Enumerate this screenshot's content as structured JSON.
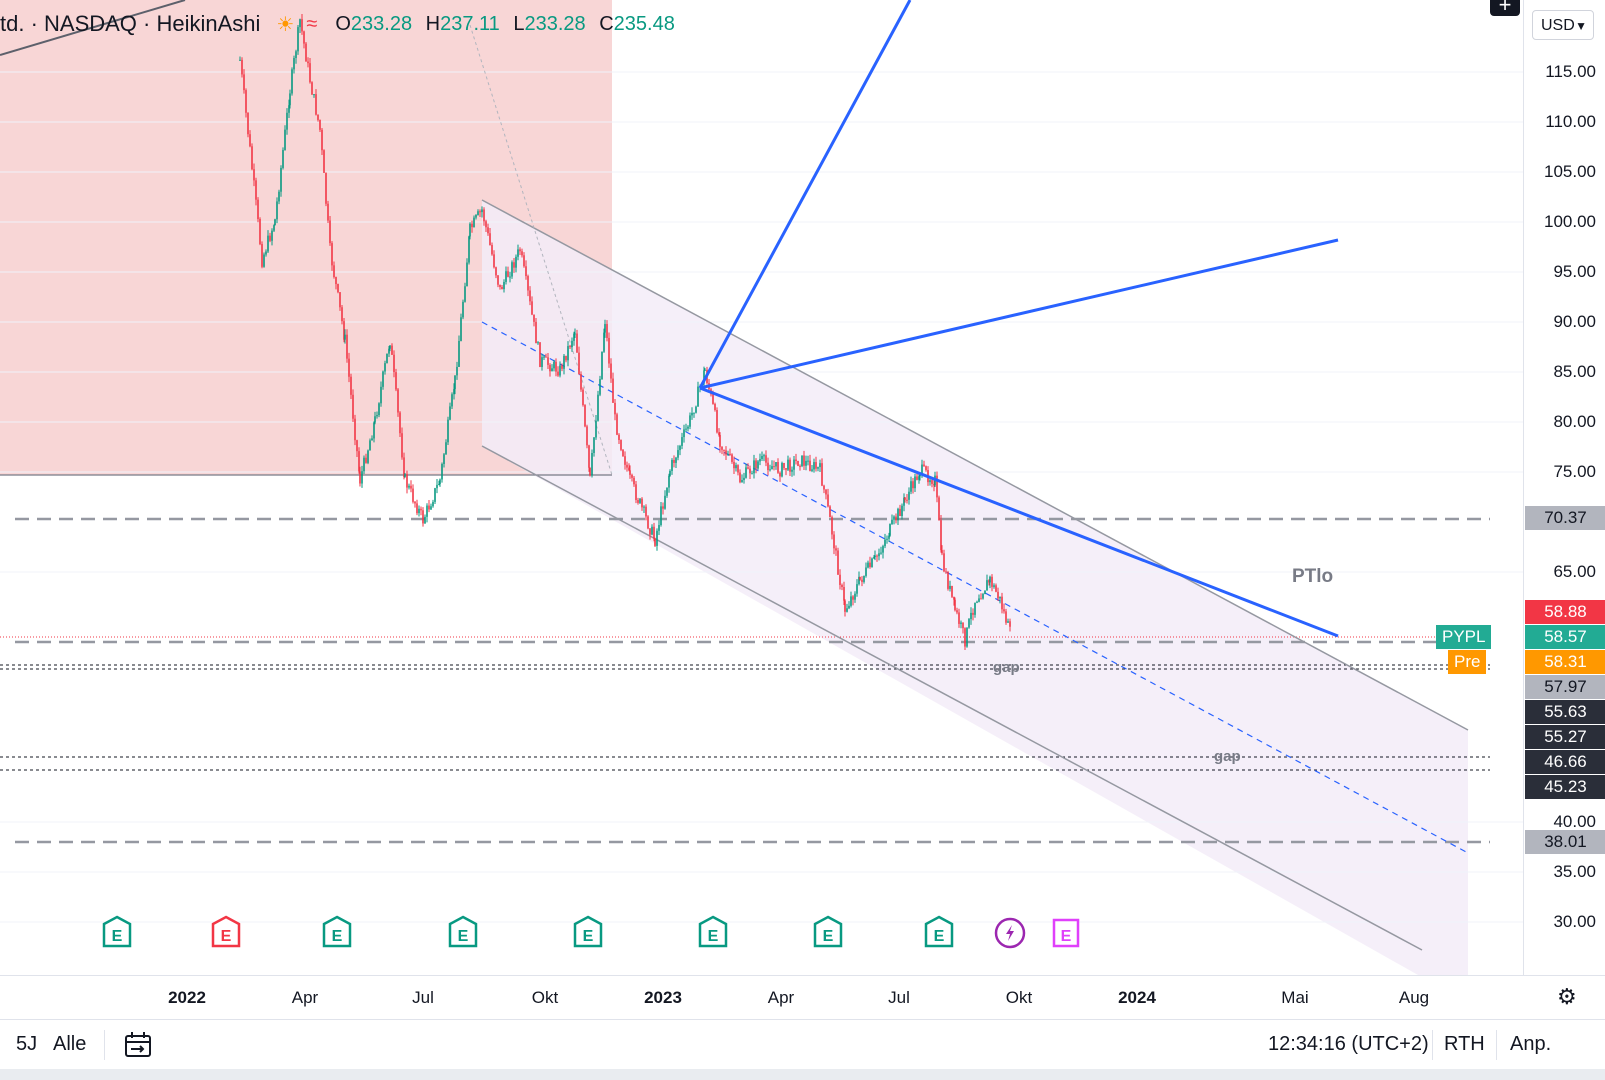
{
  "header": {
    "symbol_text": "td. · NASDAQ · HeikinAshi",
    "icon_sun": "sun-icon",
    "icon_wave": "wave-icon",
    "ohlc": {
      "o_label": "O",
      "o": "233.28",
      "h_label": "H",
      "h": "237.11",
      "l_label": "L",
      "l": "233.28",
      "c_label": "C",
      "c": "235.48"
    }
  },
  "currency": "USD",
  "price_scale": {
    "ticks": [
      "115.00",
      "110.00",
      "105.00",
      "100.00",
      "95.00",
      "90.00",
      "85.00",
      "80.00",
      "75.00",
      "65.00",
      "40.00",
      "35.00",
      "30.00"
    ]
  },
  "price_labels": [
    {
      "value": "70.37",
      "color": "#b2b5be",
      "text_color": "#131722"
    },
    {
      "value": "58.88",
      "color": "#f23645",
      "text_color": "#ffffff"
    },
    {
      "value": "58.57",
      "color": "#22ab94",
      "text_color": "#ffffff"
    },
    {
      "value": "58.31",
      "color": "#ff9800",
      "text_color": "#ffffff"
    },
    {
      "value": "57.97",
      "color": "#b2b5be",
      "text_color": "#131722"
    },
    {
      "value": "55.63",
      "color": "#2a2e39",
      "text_color": "#ffffff"
    },
    {
      "value": "55.27",
      "color": "#2a2e39",
      "text_color": "#ffffff"
    },
    {
      "value": "46.66",
      "color": "#2a2e39",
      "text_color": "#ffffff"
    },
    {
      "value": "45.23",
      "color": "#2a2e39",
      "text_color": "#ffffff"
    },
    {
      "value": "38.01",
      "color": "#b2b5be",
      "text_color": "#131722"
    }
  ],
  "tags": {
    "pypl": "PYPL",
    "pre": "Pre"
  },
  "annotations": {
    "ptlo": "PTlo",
    "gap1": "gap",
    "gap2": "gap"
  },
  "time_axis": {
    "ticks": [
      {
        "label": "2022",
        "bold": true
      },
      {
        "label": "Apr",
        "bold": false
      },
      {
        "label": "Jul",
        "bold": false
      },
      {
        "label": "Okt",
        "bold": false
      },
      {
        "label": "2023",
        "bold": true
      },
      {
        "label": "Apr",
        "bold": false
      },
      {
        "label": "Jul",
        "bold": false
      },
      {
        "label": "Okt",
        "bold": false
      },
      {
        "label": "2024",
        "bold": true
      },
      {
        "label": "Mai",
        "bold": false
      },
      {
        "label": "Aug",
        "bold": false
      }
    ]
  },
  "events": [
    {
      "label": "E",
      "color": "#089981"
    },
    {
      "label": "E",
      "color": "#f23645"
    },
    {
      "label": "E",
      "color": "#089981"
    },
    {
      "label": "E",
      "color": "#089981"
    },
    {
      "label": "E",
      "color": "#089981"
    },
    {
      "label": "E",
      "color": "#089981"
    },
    {
      "label": "E",
      "color": "#089981"
    },
    {
      "label": "E",
      "color": "#089981"
    },
    {
      "label": "",
      "color": "#9c27b0",
      "icon": "lightning-icon"
    },
    {
      "label": "E",
      "color": "#e040fb"
    }
  ],
  "toolbar": {
    "range_5y": "5J",
    "range_all": "Alle",
    "goto_icon": "calendar-range-icon",
    "time": "12:34:16 (UTC+2)",
    "rth": "RTH",
    "adjust": "Anp."
  },
  "colors": {
    "up": "#089981",
    "down": "#f23645",
    "trend": "#2962ff",
    "channel": "#9598a1"
  }
}
